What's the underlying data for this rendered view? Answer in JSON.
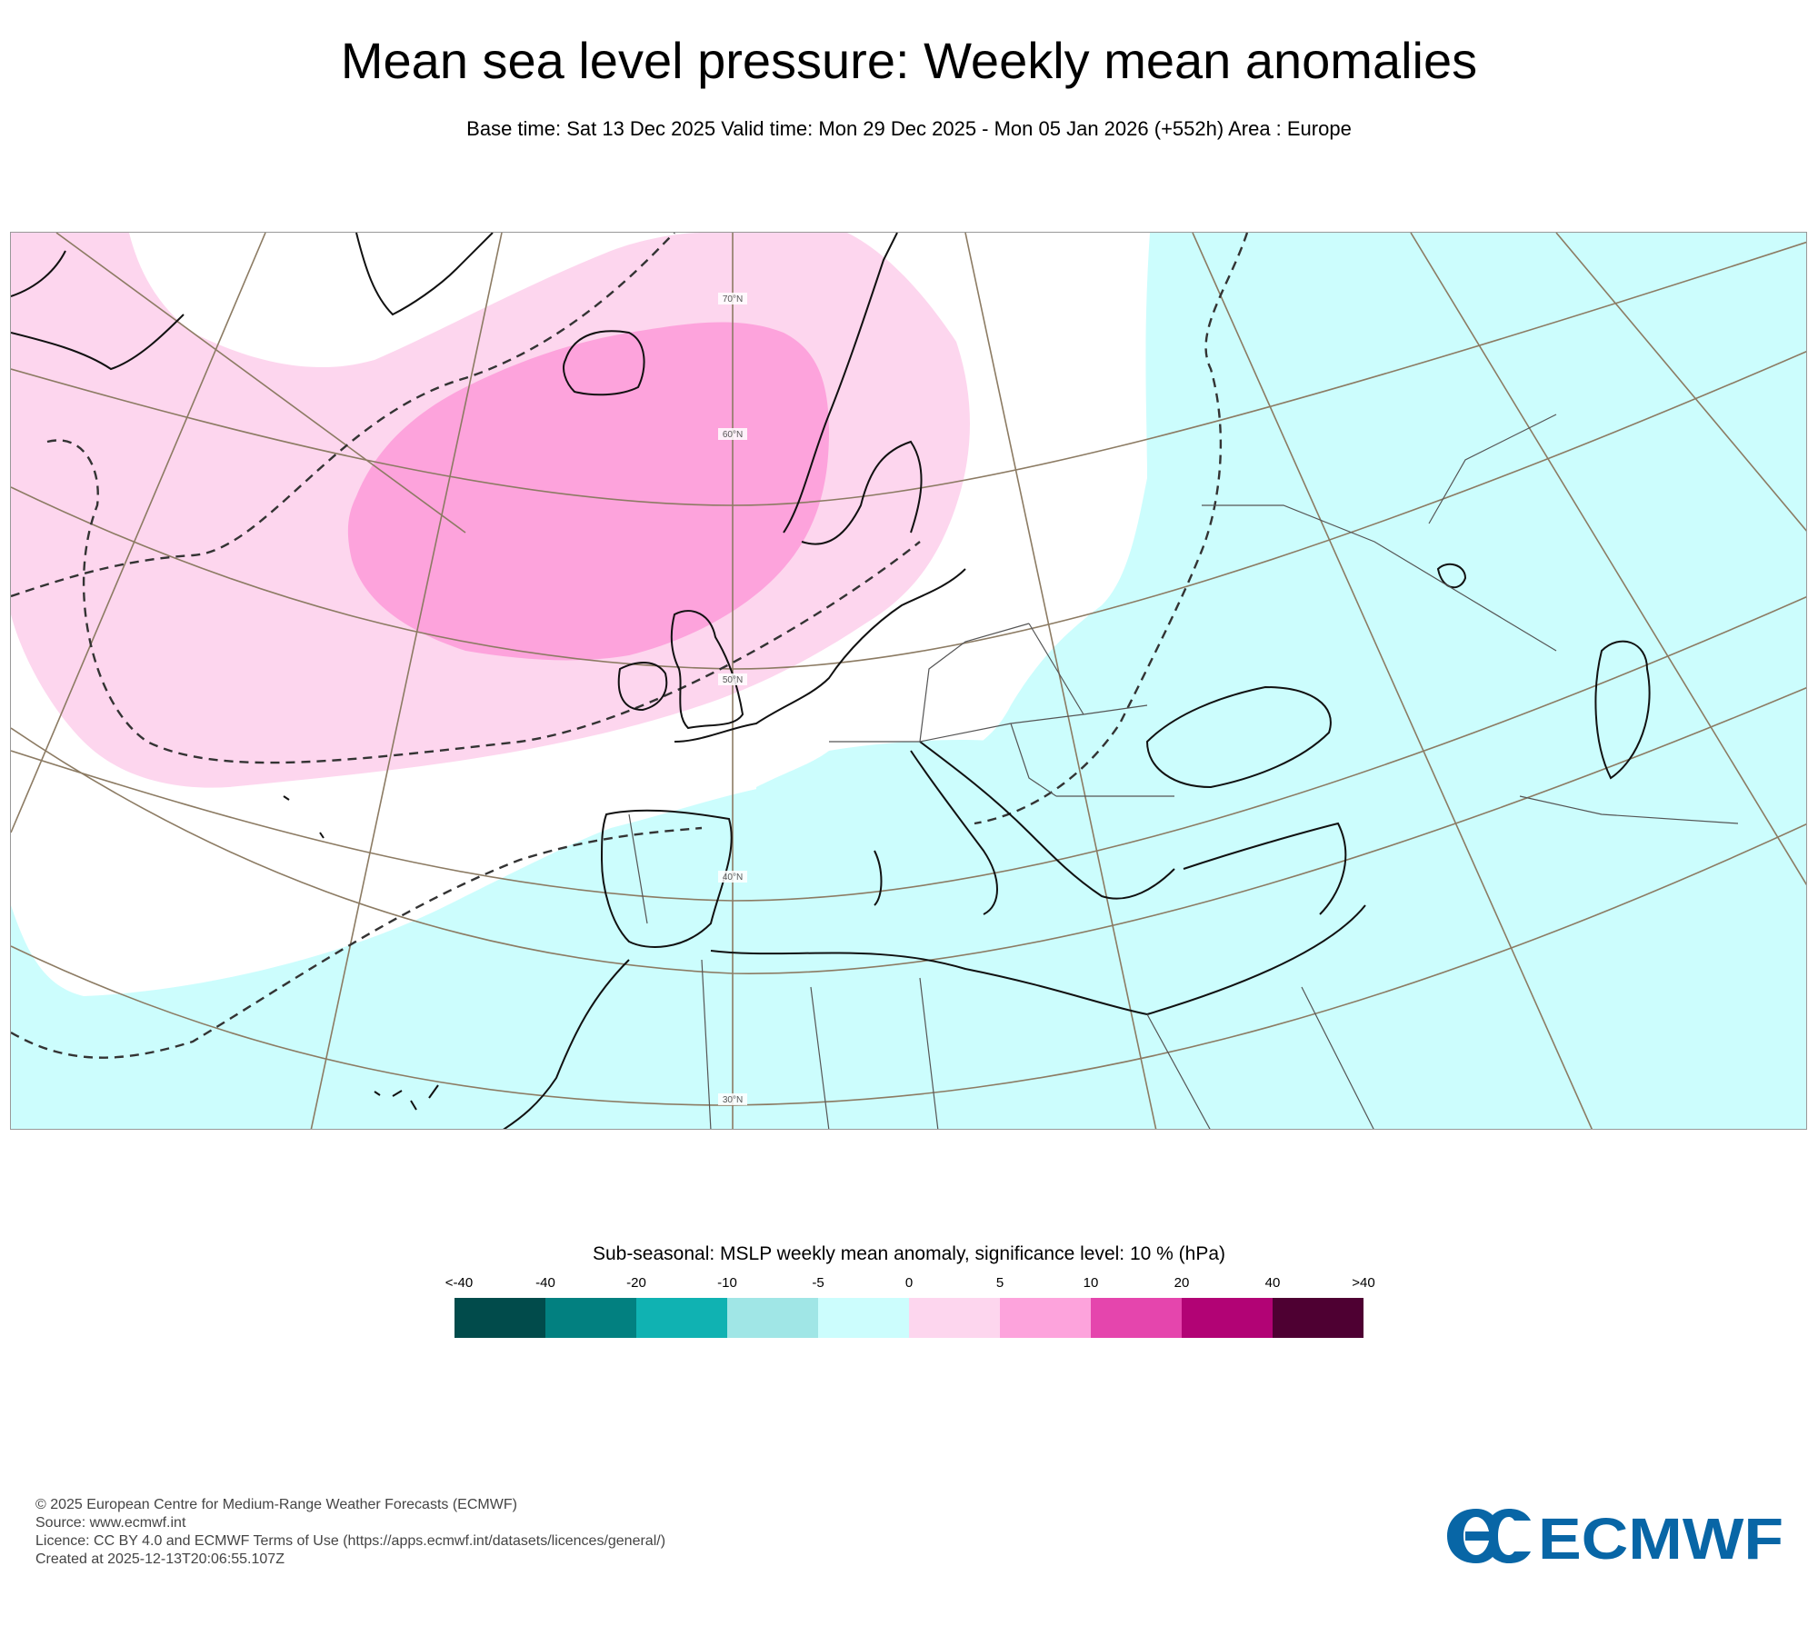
{
  "header": {
    "title": "Mean sea level pressure: Weekly mean anomalies",
    "subtitle": "Base time: Sat 13 Dec 2025 Valid time: Mon 29 Dec 2025 - Mon 05 Jan 2026 (+552h) Area : Europe"
  },
  "map": {
    "area": "Europe",
    "latitude_labels": [
      "70°N",
      "60°N",
      "50°N",
      "40°N",
      "30°N"
    ],
    "field_colors": {
      "positive_0_5": "#fdd6ee",
      "positive_5_10": "#fda3dc",
      "negative_minus5_0": "#ccfdfd",
      "graticule": "#8c7b63",
      "coastline": "#1a1a1a",
      "border": "#555555",
      "significance_contour": "#333333"
    }
  },
  "legend": {
    "title": "Sub-seasonal: MSLP weekly mean anomaly, significance level: 10 % (hPa)",
    "ticks": [
      "<-40",
      "-40",
      "-20",
      "-10",
      "-5",
      "0",
      "5",
      "10",
      "20",
      "40",
      ">40"
    ],
    "colors": [
      "#014b4b",
      "#028080",
      "#10b2b2",
      "#a0e6e6",
      "#ccfdfd",
      "#fdd6ee",
      "#fda3dc",
      "#e545ad",
      "#b20375",
      "#4e0032"
    ]
  },
  "footer": {
    "copyright": "© 2025 European Centre for Medium-Range Weather Forecasts (ECMWF)",
    "source": "Source: www.ecmwf.int",
    "licence": "Licence: CC BY 4.0 and ECMWF Terms of Use (https://apps.ecmwf.int/datasets/licences/general/)",
    "created": "Created at 2025-12-13T20:06:55.107Z"
  },
  "logo": {
    "text": "ECMWF",
    "color": "#0866a6"
  }
}
